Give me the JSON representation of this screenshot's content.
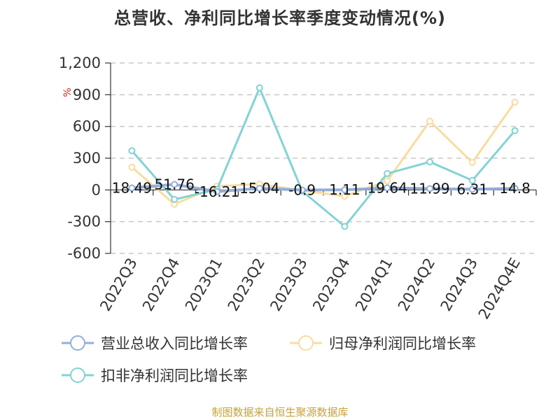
{
  "page": {
    "title": "总营收、净利同比增长率季度变动情况(%)",
    "source": "制图数据来自恒生聚源数据库"
  },
  "chart_data": {
    "type": "line",
    "title": "总营收、净利同比增长率季度变动情况(%)",
    "unit": "%",
    "categories": [
      "2022Q3",
      "2022Q4",
      "2023Q1",
      "2023Q2",
      "2023Q3",
      "2023Q4",
      "2024Q1",
      "2024Q2",
      "2024Q3",
      "2024Q4E"
    ],
    "ylim": [
      -600,
      1200
    ],
    "yticks": [
      -600,
      -300,
      0,
      300,
      600,
      900,
      1200
    ],
    "ytick_labels": [
      "-600",
      "-300",
      "0",
      "300",
      "600",
      "900",
      "1,200"
    ],
    "grid": true,
    "legend_position": "bottom",
    "series": [
      {
        "name": "营业总收入同比增长率",
        "color": "#93aed8",
        "values": [
          18.49,
          51.76,
          -16.21,
          15.04,
          -0.9,
          1.11,
          19.64,
          11.99,
          6.31,
          14.8
        ],
        "labels": [
          "18.49",
          "51.76",
          "-16.21",
          "15.04",
          "-0.9",
          "1.11",
          "19.64",
          "11.99",
          "6.31",
          "14.8"
        ]
      },
      {
        "name": "归母净利润同比增长率",
        "color": "#f9dca0",
        "values": [
          215,
          -135,
          35,
          55,
          -5,
          -60,
          85,
          650,
          260,
          830
        ]
      },
      {
        "name": "扣非净利润同比增长率",
        "color": "#84d3d4",
        "values": [
          370,
          -90,
          5,
          965,
          -10,
          -345,
          155,
          265,
          90,
          560
        ]
      }
    ]
  },
  "legend": {
    "items": [
      {
        "label": "营业总收入同比增长率",
        "color": "#93aed8"
      },
      {
        "label": "归母净利润同比增长率",
        "color": "#f9dca0"
      },
      {
        "label": "扣非净利润同比增长率",
        "color": "#84d3d4"
      }
    ]
  }
}
